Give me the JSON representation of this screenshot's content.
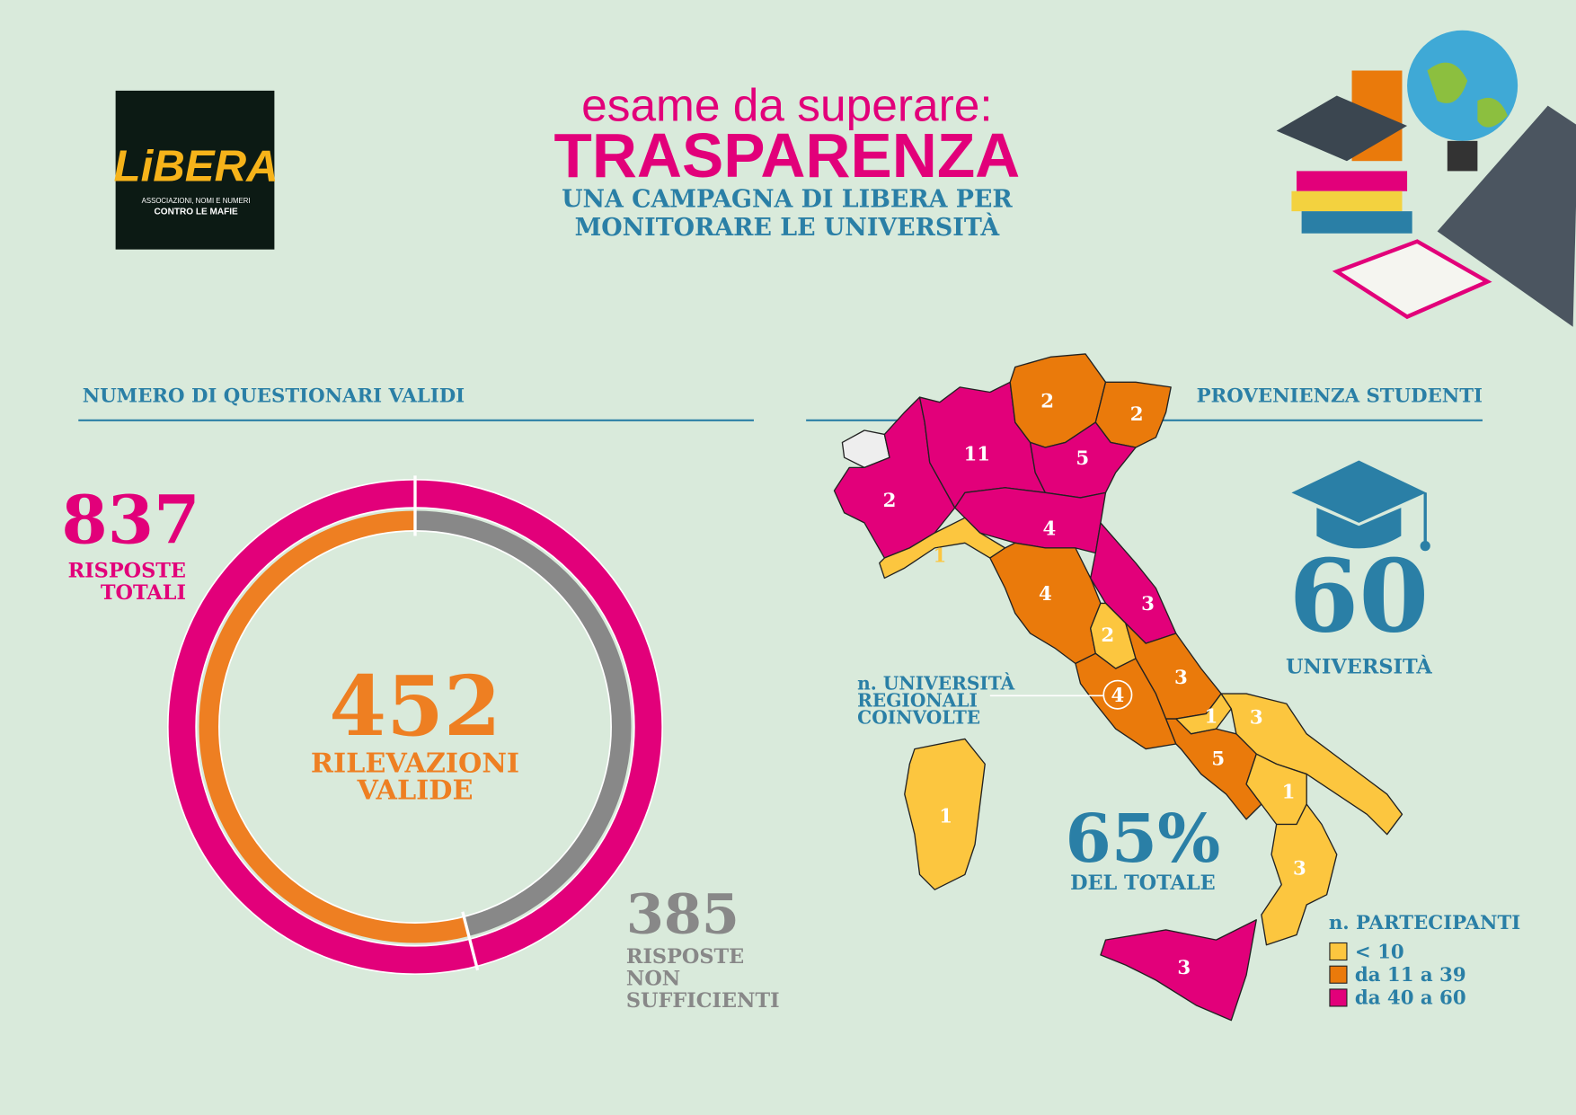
{
  "header": {
    "title_line1": "esame da superare:",
    "title_line2": "TRASPARENZA",
    "subtitle": [
      "UNA CAMPAGNA DI LIBERA PER",
      "MONITORARE LE UNIVERSITÀ"
    ]
  },
  "logo": {
    "name": "LiBERA",
    "tagline": [
      "ASSOCIAZIONI, NOMI E NUMERI",
      "CONTRO LE MAFIE"
    ]
  },
  "questionnaires": {
    "heading": "NUMERO DI QUESTIONARI VALIDI",
    "total": 837,
    "total_label": [
      "RISPOSTE",
      "TOTALI"
    ],
    "total_color": "#e2007a",
    "valid": 452,
    "valid_label": [
      "RILEVAZIONI",
      "VALIDE"
    ],
    "valid_color": "#ee7f22",
    "insufficient": 385,
    "insufficient_label": [
      "RISPOSTE",
      "NON",
      "SUFFICIENTI"
    ],
    "insufficient_color": "#888888"
  },
  "students": {
    "heading": "PROVENIENZA STUDENTI",
    "universities": 60,
    "universities_label": "UNIVERSITÀ",
    "share": "65%",
    "share_label": "DEL TOTALE",
    "callout": [
      "n. UNIVERSITÀ",
      "REGIONALI",
      "COINVOLTE"
    ],
    "legend": {
      "title": "n. PARTECIPANTI",
      "items": [
        {
          "label": "< 10",
          "color": "#fcc63f"
        },
        {
          "label": "da 11 a 39",
          "color": "#ea7a0b"
        },
        {
          "label": "da 40 a 60",
          "color": "#e2007a"
        }
      ]
    },
    "regions": [
      {
        "value": null,
        "color": "#eeeeee"
      },
      {
        "value": 2,
        "color": "#e2007a"
      },
      {
        "value": 11,
        "color": "#e2007a"
      },
      {
        "value": 2,
        "color": "#ea7a0b"
      },
      {
        "value": 2,
        "color": "#ea7a0b"
      },
      {
        "value": 5,
        "color": "#e2007a"
      },
      {
        "value": 4,
        "color": "#e2007a"
      },
      {
        "value": 1,
        "color": "#fcc63f"
      },
      {
        "value": 4,
        "color": "#ea7a0b"
      },
      {
        "value": 3,
        "color": "#e2007a"
      },
      {
        "value": 2,
        "color": "#fcc63f"
      },
      {
        "value": 4,
        "color": "#ea7a0b"
      },
      {
        "value": 3,
        "color": "#ea7a0b"
      },
      {
        "value": 1,
        "color": "#fcc63f"
      },
      {
        "value": 3,
        "color": "#fcc63f"
      },
      {
        "value": 5,
        "color": "#ea7a0b"
      },
      {
        "value": 1,
        "color": "#fcc63f"
      },
      {
        "value": 3,
        "color": "#fcc63f"
      },
      {
        "value": 3,
        "color": "#e2007a"
      },
      {
        "value": 1,
        "color": "#fcc63f"
      }
    ]
  }
}
